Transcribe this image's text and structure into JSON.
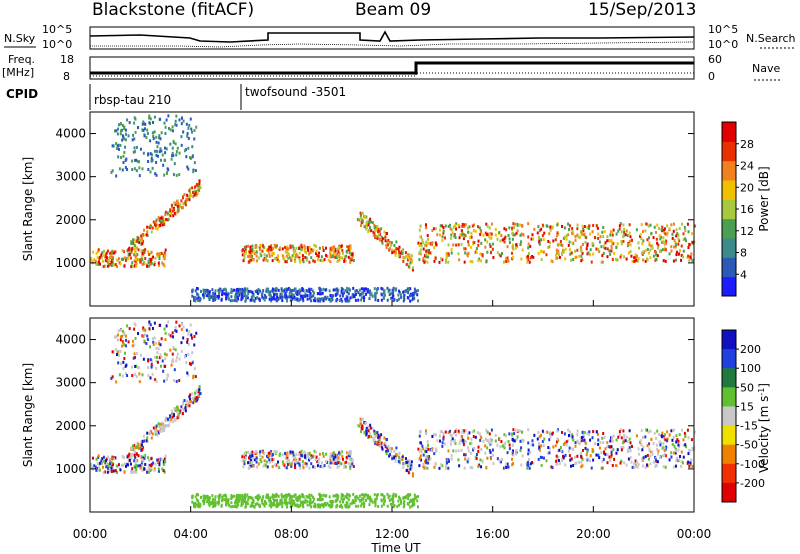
{
  "header": {
    "station": "Blackstone (fitACF)",
    "beam": "Beam 09",
    "date": "15/Sep/2013"
  },
  "noise_panel": {
    "left_label": "N.Sky",
    "right_label": "N.Search",
    "left_ticks": [
      "10^5",
      "10^0"
    ],
    "right_ticks": [
      "10^5",
      "10^0"
    ]
  },
  "freq_panel": {
    "left_label_1": "Freq.",
    "left_label_2": "[MHz]",
    "right_label": "Nave",
    "left_ticks": [
      "18",
      "8"
    ],
    "right_ticks": [
      "60",
      "0"
    ]
  },
  "cpid_panel": {
    "label": "CPID",
    "segments": [
      {
        "name": "rbsp-tau 210",
        "start_hour": 0
      },
      {
        "name": "twofsound -3501",
        "start_hour": 6
      }
    ]
  },
  "chart_data": [
    {
      "type": "heatmap",
      "title": "",
      "ylabel": "Slant Range [km]",
      "xlabel": "Time UT",
      "xlim": [
        0,
        24
      ],
      "ylim": [
        0,
        4500
      ],
      "yticks": [
        1000,
        2000,
        3000,
        4000
      ],
      "colorbar": {
        "label": "Power [dB]",
        "ticks": [
          4,
          8,
          12,
          16,
          20,
          24,
          28
        ],
        "range": [
          0,
          32
        ],
        "colors": [
          "#1c1cff",
          "#2a5ab8",
          "#3d8a8a",
          "#4aa050",
          "#a8c840",
          "#f0c000",
          "#f08020",
          "#e83000",
          "#e00000"
        ]
      },
      "echo_regions": [
        {
          "desc": "ionospheric band",
          "t": [
            0,
            3
          ],
          "range_km": [
            900,
            1300
          ]
        },
        {
          "desc": "rising band",
          "t": [
            1.5,
            4.4
          ],
          "range_km": [
            1300,
            2800
          ]
        },
        {
          "desc": "high range patches",
          "t": [
            0.8,
            4.2
          ],
          "range_km": [
            3000,
            4400
          ]
        },
        {
          "desc": "afternoon band",
          "t": [
            6,
            10.5
          ],
          "range_km": [
            1000,
            1400
          ]
        },
        {
          "desc": "descending arc",
          "t": [
            10.6,
            12.8
          ],
          "range_km": [
            1000,
            2100
          ]
        },
        {
          "desc": "strong band",
          "t": [
            13,
            24
          ],
          "range_km": [
            1000,
            1900
          ]
        },
        {
          "desc": "ground scatter",
          "t": [
            4,
            13
          ],
          "range_km": [
            100,
            400
          ]
        }
      ]
    },
    {
      "type": "heatmap",
      "title": "",
      "ylabel": "Slant Range [km]",
      "xlabel": "Time UT",
      "xlim": [
        0,
        24
      ],
      "ylim": [
        0,
        4500
      ],
      "yticks": [
        1000,
        2000,
        3000,
        4000
      ],
      "xticks": [
        "00:00",
        "04:00",
        "08:00",
        "12:00",
        "16:00",
        "20:00",
        "00:00"
      ],
      "colorbar": {
        "label_main": "Velocity [m s",
        "label_sup": "-1",
        "label_end": "]",
        "ticks": [
          "200",
          "100",
          "50",
          "15",
          "-15",
          "-50",
          "-100",
          "-200"
        ],
        "colors": [
          "#1010c0",
          "#2040e0",
          "#207a40",
          "#60c030",
          "#c8c8c8",
          "#f0e000",
          "#f08000",
          "#f03000",
          "#e00000"
        ]
      }
    }
  ]
}
